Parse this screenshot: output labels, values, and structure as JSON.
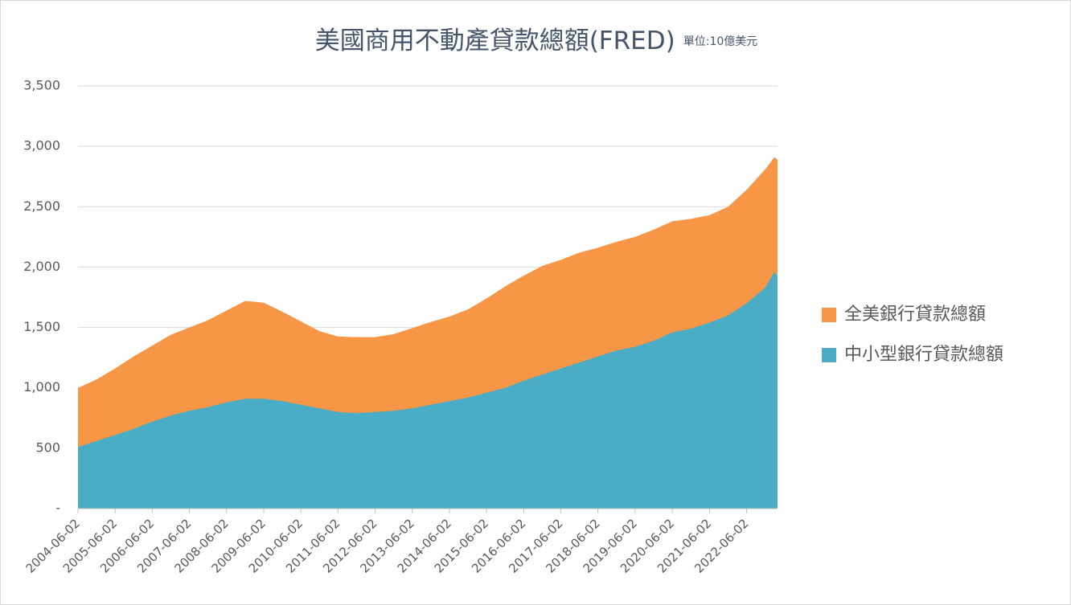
{
  "chart_data": {
    "type": "area",
    "title": "美國商用不動產貸款總額(FRED)",
    "subtitle": "單位:10億美元",
    "x": [
      "2004-06-02",
      "2004-12-02",
      "2005-06-02",
      "2005-12-02",
      "2006-06-02",
      "2006-12-02",
      "2007-06-02",
      "2007-12-02",
      "2008-06-02",
      "2008-12-02",
      "2009-06-02",
      "2009-12-02",
      "2010-06-02",
      "2010-12-02",
      "2011-06-02",
      "2011-12-02",
      "2012-06-02",
      "2012-12-02",
      "2013-06-02",
      "2013-12-02",
      "2014-06-02",
      "2014-12-02",
      "2015-06-02",
      "2015-12-02",
      "2016-06-02",
      "2016-12-02",
      "2017-06-02",
      "2017-12-02",
      "2018-06-02",
      "2018-12-02",
      "2019-06-02",
      "2019-12-02",
      "2020-06-02",
      "2020-12-02",
      "2021-06-02",
      "2021-12-02",
      "2022-06-02",
      "2022-12-02",
      "2023-03-02",
      "2023-04-02"
    ],
    "series": [
      {
        "name": "全美銀行貸款總額",
        "color": "#f79646",
        "values": [
          1000,
          1070,
          1160,
          1260,
          1350,
          1440,
          1500,
          1560,
          1640,
          1720,
          1705,
          1630,
          1550,
          1470,
          1425,
          1420,
          1420,
          1445,
          1495,
          1545,
          1590,
          1650,
          1740,
          1840,
          1930,
          2010,
          2060,
          2120,
          2160,
          2210,
          2250,
          2310,
          2380,
          2400,
          2430,
          2500,
          2640,
          2810,
          2910,
          2890
        ]
      },
      {
        "name": "中小型銀行貸款總額",
        "color": "#4bacc6",
        "values": [
          510,
          560,
          610,
          660,
          720,
          770,
          810,
          840,
          880,
          910,
          910,
          890,
          860,
          830,
          800,
          790,
          800,
          810,
          830,
          860,
          890,
          920,
          960,
          1000,
          1060,
          1110,
          1160,
          1210,
          1260,
          1310,
          1340,
          1390,
          1460,
          1490,
          1540,
          1600,
          1700,
          1830,
          1960,
          1930
        ]
      }
    ],
    "xlim": [
      "2004-06-02",
      "2023-04-02"
    ],
    "xticks": [
      "2004-06-02",
      "2005-06-02",
      "2006-06-02",
      "2007-06-02",
      "2008-06-02",
      "2009-06-02",
      "2010-06-02",
      "2011-06-02",
      "2012-06-02",
      "2013-06-02",
      "2014-06-02",
      "2015-06-02",
      "2016-06-02",
      "2017-06-02",
      "2018-06-02",
      "2019-06-02",
      "2020-06-02",
      "2021-06-02",
      "2022-06-02"
    ],
    "ylim": [
      0,
      3500
    ],
    "yticks": [
      {
        "value": 0,
        "label": "-"
      },
      {
        "value": 500,
        "label": "500"
      },
      {
        "value": 1000,
        "label": "1,000"
      },
      {
        "value": 1500,
        "label": "1,500"
      },
      {
        "value": 2000,
        "label": "2,000"
      },
      {
        "value": 2500,
        "label": "2,500"
      },
      {
        "value": 3000,
        "label": "3,000"
      },
      {
        "value": 3500,
        "label": "3,500"
      }
    ],
    "grid": true,
    "legend": "right"
  }
}
